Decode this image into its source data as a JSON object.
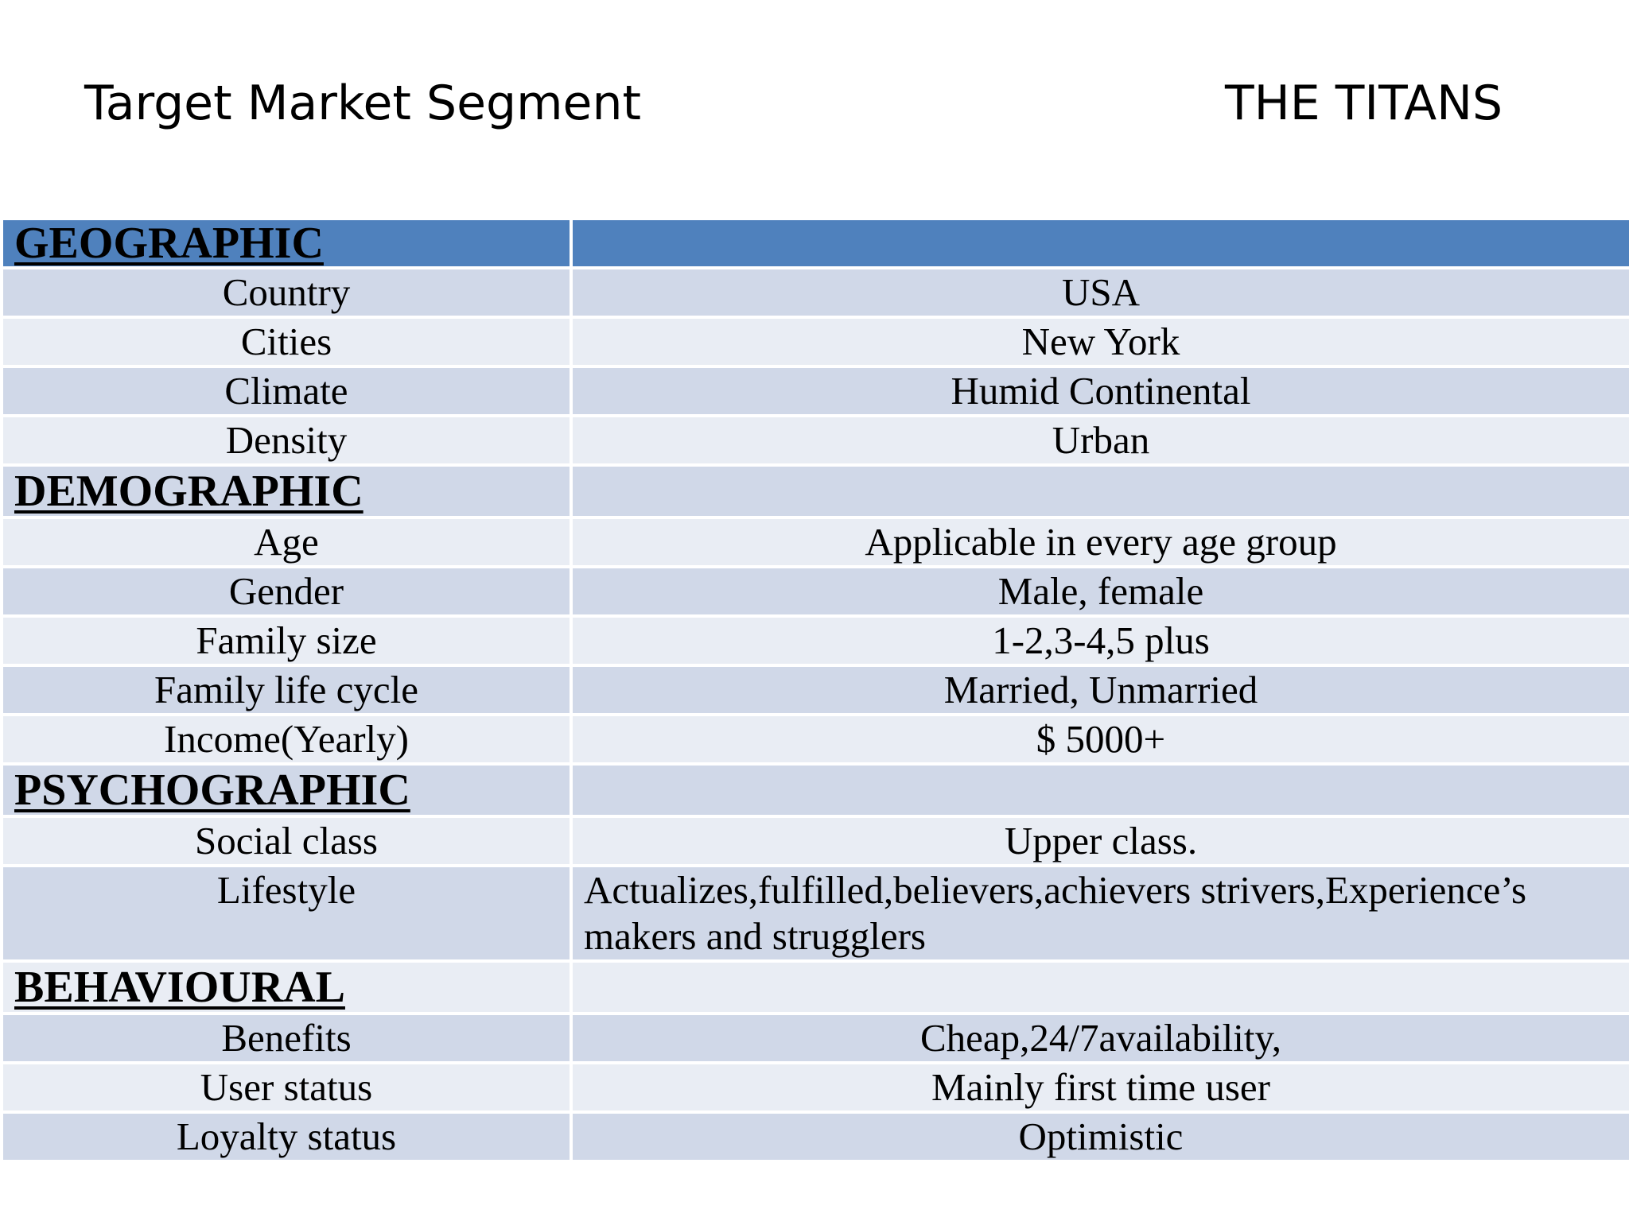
{
  "slide": {
    "title": "Target Market Segment",
    "subtitle": "THE TITANS"
  },
  "colors": {
    "header_fill": "#4f81bd",
    "row_dark": "#d0d8e8",
    "row_light": "#e9edf4"
  },
  "table": {
    "geographic": {
      "heading": "GEOGRAPHIC",
      "rows": [
        {
          "label": "Country",
          "value": "USA"
        },
        {
          "label": "Cities",
          "value": "New York"
        },
        {
          "label": "Climate",
          "value": "Humid Continental"
        },
        {
          "label": "Density",
          "value": "Urban"
        }
      ]
    },
    "demographic": {
      "heading": "DEMOGRAPHIC",
      "rows": [
        {
          "label": "Age",
          "value": "Applicable in every age group"
        },
        {
          "label": "Gender",
          "value": "Male, female"
        },
        {
          "label": "Family size",
          "value": "1-2,3-4,5 plus"
        },
        {
          "label": "Family life cycle",
          "value": "Married, Unmarried"
        },
        {
          "label": "Income(Yearly)",
          "value": "$ 5000+"
        }
      ]
    },
    "psychographic": {
      "heading": "PSYCHOGRAPHIC",
      "rows": [
        {
          "label": "Social class",
          "value": "Upper class."
        },
        {
          "label": "Lifestyle",
          "value": "Actualizes,fulfilled,believers,achievers strivers,Experience’s makers and strugglers"
        }
      ]
    },
    "behavioural": {
      "heading": "BEHAVIOURAL",
      "rows": [
        {
          "label": "Benefits",
          "value": "Cheap,24/7availability,"
        },
        {
          "label": "User status",
          "value": "Mainly first time user"
        },
        {
          "label": "Loyalty status",
          "value": "Optimistic"
        }
      ]
    }
  }
}
